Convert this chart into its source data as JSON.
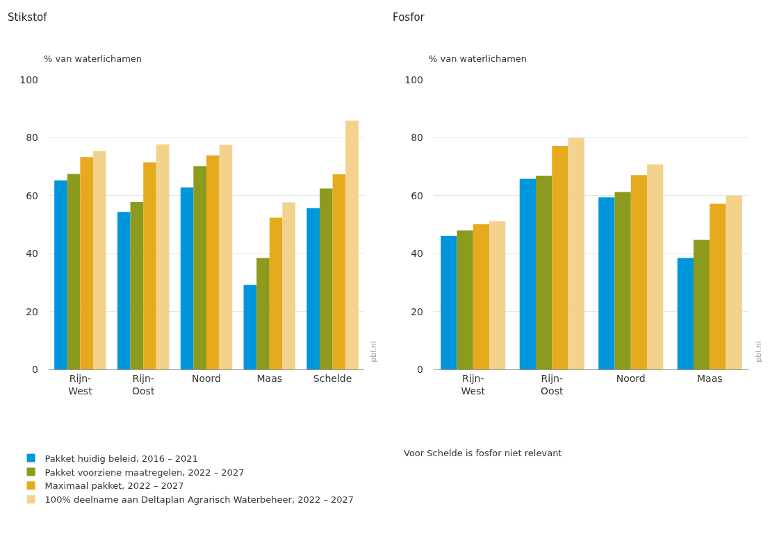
{
  "chart_data": [
    {
      "type": "bar",
      "title": "Stikstof",
      "ylabel": "% van waterlichamen",
      "categories": [
        "Rijn-West",
        "Rijn-Oost",
        "Noord",
        "Maas",
        "Schelde"
      ],
      "ylim": [
        0,
        100
      ],
      "yticks": [
        0,
        20,
        40,
        60,
        80,
        100
      ],
      "grid": "y",
      "legend": "bottom",
      "annotations": [
        "pbl.nl"
      ],
      "series": [
        {
          "name": "Pakket huidig beleid, 2016 – 2021",
          "color": "#0096dc",
          "values": [
            65.3,
            54.4,
            62.8,
            29.2,
            55.7
          ]
        },
        {
          "name": "Pakket voorziene maatregelen, 2022 – 2027",
          "color": "#8c9a1e",
          "values": [
            67.5,
            57.8,
            70.2,
            38.5,
            62.5
          ]
        },
        {
          "name": "Maximaal pakket, 2022 – 2027",
          "color": "#e6aa1e",
          "values": [
            73.3,
            71.5,
            73.9,
            52.4,
            67.4
          ]
        },
        {
          "name": "100% deelname aan Deltaplan Agrarisch Waterbeheer, 2022 – 2027",
          "color": "#f2d28c",
          "values": [
            75.4,
            77.7,
            77.5,
            57.7,
            85.9
          ]
        }
      ]
    },
    {
      "type": "bar",
      "title": "Fosfor",
      "ylabel": "% van waterlichamen",
      "categories": [
        "Rijn-West",
        "Rijn-Oost",
        "Noord",
        "Maas"
      ],
      "ylim": [
        0,
        100
      ],
      "yticks": [
        0,
        20,
        40,
        60,
        80,
        100
      ],
      "grid": "y",
      "annotations": [
        "pbl.nl",
        "Voor Schelde is fosfor niet relevant"
      ],
      "series": [
        {
          "color": "#0096dc",
          "values": [
            46.1,
            65.8,
            59.4,
            38.5
          ]
        },
        {
          "color": "#8c9a1e",
          "values": [
            48.0,
            66.9,
            61.3,
            44.7
          ]
        },
        {
          "color": "#e6aa1e",
          "values": [
            50.1,
            77.2,
            67.1,
            57.2
          ]
        },
        {
          "color": "#f2d28c",
          "values": [
            51.2,
            79.9,
            70.8,
            60.1
          ]
        }
      ]
    }
  ]
}
